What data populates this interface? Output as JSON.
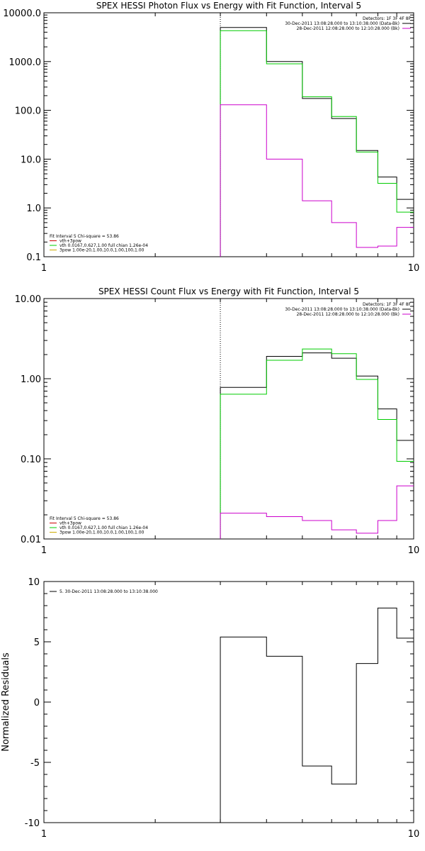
{
  "chart_data": [
    {
      "type": "line",
      "title": "SPEX HESSI Photon Flux vs Energy with Fit Function, Interval 5",
      "xlabel": "",
      "ylabel": "",
      "xscale": "log",
      "yscale": "log",
      "xlim": [
        1,
        10
      ],
      "ylim": [
        0.1,
        10000.0
      ],
      "x_tick_labels": [
        "1",
        "10"
      ],
      "y_tick_labels": [
        "0.1",
        "1.0",
        "10.0",
        "100.0",
        "1000.0",
        "10000.0"
      ],
      "vline_x": 3,
      "legend_right": {
        "header": "Detectors: 1F 3F 4F 8F",
        "entries": [
          {
            "text": "30-Dec-2011 13:08:28.000 to 13:10:38.000 (Data-Bk)",
            "color": "#000000"
          },
          {
            "text": "28-Dec-2011 12:08:28.000 to 12:10:28.000 (Bk)",
            "color": "#cc00cc"
          }
        ]
      },
      "legend_left": {
        "header": "Fit Interval 5   Chi-square = 53.86",
        "entries": [
          {
            "text": "vth+3pow",
            "color": "#cc0000"
          },
          {
            "text": "vth 0.0167,0.627,1.00   full chian 1.26e-04",
            "color": "#00cc00"
          },
          {
            "text": "3pow 1.00e-20,1.00,10.0,1.00,100,1.00",
            "color": "#ccaa00"
          }
        ]
      },
      "edges": [
        3,
        4,
        5,
        6,
        7,
        8,
        9,
        10
      ],
      "series": [
        {
          "name": "Data-Bk",
          "color": "#000000",
          "values": [
            5000,
            1000,
            175,
            68,
            15,
            4.3,
            1.5
          ]
        },
        {
          "name": "vth",
          "color": "#00cc00",
          "values": [
            4300,
            900,
            190,
            75,
            14,
            3.2,
            0.82
          ]
        },
        {
          "name": "Bk",
          "color": "#cc00cc",
          "values": [
            130,
            10,
            1.4,
            0.5,
            0.155,
            0.165,
            0.4
          ]
        }
      ]
    },
    {
      "type": "line",
      "title": "SPEX HESSI Count Flux vs Energy with Fit Function, Interval 5",
      "xlabel": "",
      "ylabel": "",
      "xscale": "log",
      "yscale": "log",
      "xlim": [
        1,
        10
      ],
      "ylim": [
        0.01,
        10.0
      ],
      "x_tick_labels": [
        "1",
        "10"
      ],
      "y_tick_labels": [
        "0.01",
        "0.10",
        "1.00",
        "10.00"
      ],
      "vline_x": 3,
      "legend_right": {
        "header": "Detectors: 1F 3F 4F 8F",
        "entries": [
          {
            "text": "30-Dec-2011 13:08:28.000 to 13:10:38.000 (Data-Bk)",
            "color": "#000000"
          },
          {
            "text": "28-Dec-2011 12:08:28.000 to 12:10:28.000 (Bk)",
            "color": "#cc00cc"
          }
        ]
      },
      "legend_left": {
        "header": "Fit Interval 5   Chi-square = 53.86",
        "entries": [
          {
            "text": "vth+3pow",
            "color": "#cc0000"
          },
          {
            "text": "vth 0.0167,0.627,1.00   full chian 1.26e-04",
            "color": "#00cc00"
          },
          {
            "text": "3pow 1.00e-20,1.00,10.0,1.00,100,1.00",
            "color": "#ccaa00"
          }
        ]
      },
      "edges": [
        3,
        4,
        5,
        6,
        7,
        8,
        9,
        10
      ],
      "series": [
        {
          "name": "Data-Bk",
          "color": "#000000",
          "values": [
            0.78,
            1.9,
            2.1,
            1.8,
            1.08,
            0.42,
            0.17
          ]
        },
        {
          "name": "vth",
          "color": "#00cc00",
          "values": [
            0.64,
            1.7,
            2.35,
            2.05,
            0.98,
            0.31,
            0.093
          ]
        },
        {
          "name": "Bk",
          "color": "#cc00cc",
          "values": [
            0.021,
            0.019,
            0.017,
            0.013,
            0.0118,
            0.017,
            0.046
          ]
        }
      ]
    },
    {
      "type": "line",
      "title": "",
      "xlabel": "",
      "ylabel": "Normalized Residuals",
      "xscale": "log",
      "yscale": "linear",
      "xlim": [
        1,
        10
      ],
      "ylim": [
        -10,
        10
      ],
      "x_tick_labels": [
        "1",
        "10"
      ],
      "y_tick_labels": [
        "-10",
        "-5",
        "0",
        "5",
        "10"
      ],
      "legend_left": {
        "header": "",
        "entries": [
          {
            "text": "5. 30-Dec-2011 13:08:28.000 to 13:10:38.000",
            "color": "#000000"
          }
        ]
      },
      "edges": [
        3,
        4,
        5,
        6,
        7,
        8,
        9,
        10
      ],
      "series": [
        {
          "name": "residuals",
          "color": "#000000",
          "values": [
            5.4,
            3.8,
            -5.3,
            -6.8,
            3.2,
            7.8,
            5.3
          ]
        }
      ]
    }
  ]
}
